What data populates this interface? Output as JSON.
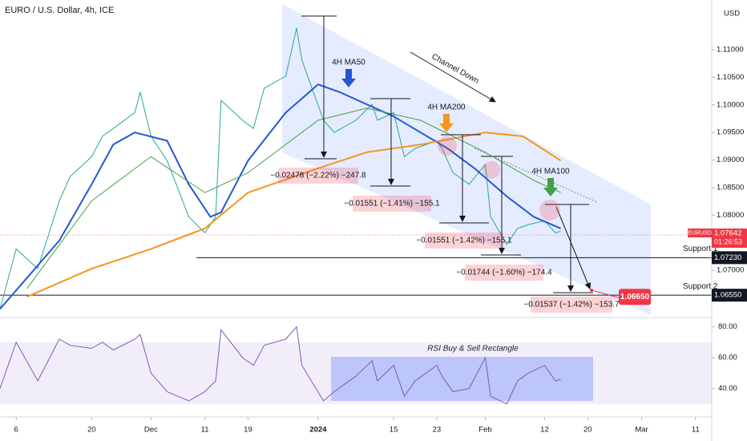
{
  "chart_data": {
    "type": "line",
    "title": "EURO / U.S. Dollar, 4h, ICE",
    "currency": "USD",
    "xlim": [
      "2023-11-03",
      "2024-03-14"
    ],
    "xticks": [
      {
        "value": "2023-11-06",
        "label": "6"
      },
      {
        "value": "2023-11-20",
        "label": "20"
      },
      {
        "value": "2023-12-01",
        "label": "Dec"
      },
      {
        "value": "2023-12-11",
        "label": "11"
      },
      {
        "value": "2023-12-19",
        "label": "19"
      },
      {
        "value": "2024-01-01",
        "label": "2024"
      },
      {
        "value": "2024-01-15",
        "label": "15"
      },
      {
        "value": "2024-01-23",
        "label": "23"
      },
      {
        "value": "2024-02-01",
        "label": "Feb"
      },
      {
        "value": "2024-02-12",
        "label": "12"
      },
      {
        "value": "2024-02-20",
        "label": "20"
      },
      {
        "value": "2024-03-01",
        "label": "Mar"
      },
      {
        "value": "2024-03-11",
        "label": "11"
      }
    ],
    "ylim": [
      1.0616,
      1.119
    ],
    "yticks": [
      {
        "value": 1.07,
        "label": "1.07000"
      },
      {
        "value": 1.08,
        "label": "1.08000"
      },
      {
        "value": 1.085,
        "label": "1.08500"
      },
      {
        "value": 1.09,
        "label": "1.09000"
      },
      {
        "value": 1.095,
        "label": "1.09500"
      },
      {
        "value": 1.1,
        "label": "1.10000"
      },
      {
        "value": 1.105,
        "label": "1.10500"
      },
      {
        "value": 1.11,
        "label": "1.11000"
      }
    ],
    "series": [
      {
        "name": "EURUSD",
        "color": "#26a69a",
        "x": [
          "2023-11-03",
          "2023-11-06",
          "2023-11-10",
          "2023-11-14",
          "2023-11-16",
          "2023-11-20",
          "2023-11-22",
          "2023-11-24",
          "2023-11-28",
          "2023-11-29",
          "2023-12-01",
          "2023-12-04",
          "2023-12-06",
          "2023-12-08",
          "2023-12-11",
          "2023-12-13",
          "2023-12-14",
          "2023-12-18",
          "2023-12-20",
          "2023-12-22",
          "2023-12-26",
          "2023-12-28",
          "2023-12-29",
          "2024-01-02",
          "2024-01-04",
          "2024-01-08",
          "2024-01-11",
          "2024-01-12",
          "2024-01-15",
          "2024-01-17",
          "2024-01-19",
          "2024-01-23",
          "2024-01-24",
          "2024-01-26",
          "2024-01-29",
          "2024-02-01",
          "2024-02-02",
          "2024-02-05",
          "2024-02-07",
          "2024-02-09",
          "2024-02-12",
          "2024-02-14",
          "2024-02-15"
        ],
        "values": [
          1.063,
          1.0739,
          1.0703,
          1.0826,
          1.087,
          1.0906,
          1.0943,
          1.0957,
          1.0986,
          1.1023,
          1.0943,
          1.0899,
          1.0848,
          1.0797,
          1.0768,
          1.0797,
          1.1008,
          1.0972,
          1.0957,
          1.103,
          1.1052,
          1.1139,
          1.1081,
          1.0972,
          1.095,
          1.0972,
          1.1001,
          1.0972,
          1.0986,
          1.0906,
          1.0921,
          1.0935,
          1.0921,
          1.0877,
          1.0856,
          1.0892,
          1.0797,
          1.0747,
          1.0776,
          1.0783,
          1.079,
          1.0768,
          1.0771
        ]
      },
      {
        "name": "4H MA50",
        "color": "#2457d6",
        "x": [
          "2023-11-03",
          "2023-11-14",
          "2023-11-20",
          "2023-11-24",
          "2023-11-28",
          "2023-12-04",
          "2023-12-08",
          "2023-12-12",
          "2023-12-14",
          "2023-12-19",
          "2023-12-26",
          "2024-01-01",
          "2024-01-05",
          "2024-01-10",
          "2024-01-15",
          "2024-01-20",
          "2024-01-25",
          "2024-01-30",
          "2024-02-05",
          "2024-02-10",
          "2024-02-15"
        ],
        "values": [
          1.063,
          1.0754,
          1.0856,
          1.0928,
          1.095,
          1.0935,
          1.0856,
          1.0797,
          1.0805,
          1.0899,
          1.0986,
          1.1037,
          1.1023,
          1.1001,
          1.0979,
          1.095,
          1.0921,
          1.0885,
          1.0834,
          1.0797,
          1.0776
        ]
      },
      {
        "name": "4H MA200",
        "color": "#f5961d",
        "x": [
          "2023-11-08",
          "2023-11-20",
          "2023-12-01",
          "2023-12-11",
          "2023-12-19",
          "2024-01-01",
          "2024-01-10",
          "2024-01-20",
          "2024-02-01",
          "2024-02-08",
          "2024-02-15"
        ],
        "values": [
          1.0652,
          1.0703,
          1.0739,
          1.0776,
          1.0841,
          1.0885,
          1.0914,
          1.0928,
          1.095,
          1.0943,
          1.0899
        ]
      },
      {
        "name": "4H MA100",
        "color": "#43a047",
        "x": [
          "2023-11-08",
          "2023-11-20",
          "2023-12-01",
          "2023-12-11",
          "2023-12-19",
          "2024-01-01",
          "2024-01-10",
          "2024-01-20",
          "2024-02-01",
          "2024-02-10",
          "2024-02-15"
        ],
        "values": [
          1.0667,
          1.0826,
          1.0906,
          1.0841,
          1.0877,
          1.0972,
          1.0994,
          1.0972,
          1.0914,
          1.0863,
          1.0841
        ]
      }
    ],
    "last_price": {
      "value": 1.07642,
      "label": "1.07642",
      "countdown": "01:26:53"
    },
    "supports": [
      {
        "name": "Support 1",
        "value": 1.0723,
        "label": "1.07230"
      },
      {
        "name": "Support 2",
        "value": 1.0655,
        "label": "1.06550"
      }
    ],
    "target": {
      "value": 1.0665,
      "label": "1.06650"
    },
    "channel": "Channel Down",
    "measures": [
      "−0.02478 (−2.22%) −247.8",
      "−0.01551 (−1.41%) −155.1",
      "−0.01551 (−1.42%) −155.1",
      "−0.01744 (−1.60%) −174.4",
      "−0.01537 (−1.42%) −153.7"
    ],
    "rsi": {
      "title": "RSI Buy & Sell Rectangle",
      "color": "#7e57c2",
      "ylim": [
        21.6,
        85.5
      ],
      "yticks": [
        {
          "value": 80,
          "label": "80.00"
        },
        {
          "value": 60,
          "label": "60.00"
        },
        {
          "value": 40,
          "label": "40.00"
        }
      ],
      "band": [
        30,
        70
      ],
      "values": [
        40,
        70,
        45,
        72,
        68,
        66,
        70,
        65,
        72,
        75,
        50,
        38,
        35,
        32,
        38,
        45,
        78,
        60,
        55,
        68,
        72,
        80,
        55,
        32,
        38,
        48,
        58,
        45,
        55,
        35,
        45,
        55,
        48,
        38,
        40,
        60,
        35,
        30,
        45,
        50,
        55,
        45,
        46
      ]
    }
  }
}
